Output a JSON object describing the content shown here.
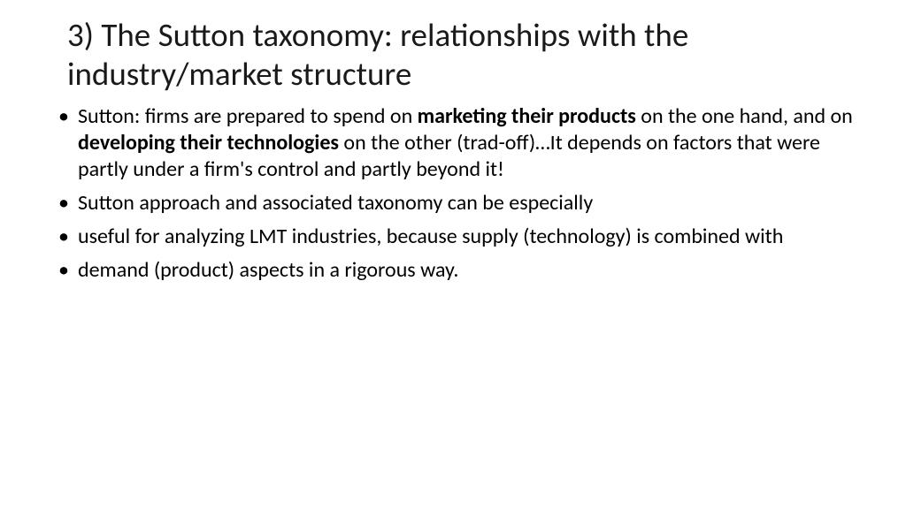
{
  "title": "3) The Sutton taxonomy: relationships with the industry/market structure",
  "bullets": [
    {
      "segments": [
        {
          "text": "Sutton: firms are prepared to spend on ",
          "bold": false
        },
        {
          "text": "marketing their products",
          "bold": true
        },
        {
          "text": " on the one hand, and on ",
          "bold": false
        },
        {
          "text": "developing their technologies",
          "bold": true
        },
        {
          "text": " on the other (trad-off)…It depends on factors that were partly under a firm's control and partly beyond it!",
          "bold": false
        }
      ]
    },
    {
      "segments": [
        {
          "text": "Sutton approach and associated taxonomy can be especially",
          "bold": false
        }
      ]
    },
    {
      "segments": [
        {
          "text": "useful for analyzing LMT industries, because supply (technology) is combined with",
          "bold": false
        }
      ]
    },
    {
      "segments": [
        {
          "text": "demand (product) aspects in a rigorous way.",
          "bold": false
        }
      ]
    }
  ],
  "colors": {
    "background": "#ffffff",
    "text": "#000000",
    "title": "#1a1a1a"
  },
  "typography": {
    "title_fontsize": 37,
    "body_fontsize": 24,
    "font_family": "Calibri"
  }
}
